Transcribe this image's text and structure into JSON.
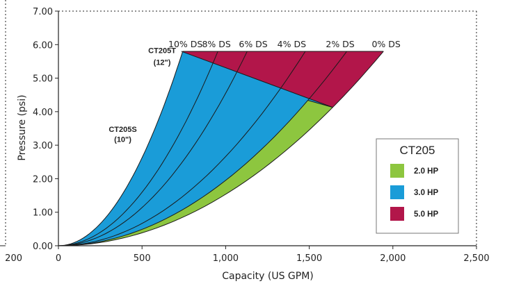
{
  "chart_data": {
    "type": "area",
    "xlabel": "Capacity (US GPM)",
    "ylabel": "Pressure (psi)",
    "xlim": [
      0,
      2500
    ],
    "ylim": [
      0,
      7
    ],
    "x_ticks": [
      "0",
      "500",
      "1,000",
      "1,500",
      "2,000",
      "2,500"
    ],
    "y_ticks": [
      "0.00",
      "1.00",
      "2.00",
      "3.00",
      "4.00",
      "5.00",
      "6.00",
      "7.00"
    ],
    "left_clipped_tick": "200",
    "grid": false,
    "legend": {
      "position": "right",
      "title": "CT205",
      "items": [
        {
          "label": "2.0 HP",
          "color": "#8dc63f"
        },
        {
          "label": "3.0 HP",
          "color": "#1a9cd8"
        },
        {
          "label": "5.0 HP",
          "color": "#b2164a"
        }
      ]
    },
    "max_pressure": 5.8,
    "ds_curves": [
      {
        "label": "10% DS",
        "k": 10.5
      },
      {
        "label": "8% DS",
        "k": 6.38
      },
      {
        "label": "6% DS",
        "k": 4.55
      },
      {
        "label": "4% DS",
        "k": 2.66
      },
      {
        "label": "2% DS",
        "k": 1.95
      },
      {
        "label": "0% DS",
        "k": 1.535
      }
    ],
    "ds_label_x": [
      760,
      945,
      1165,
      1395,
      1685,
      1960
    ],
    "power_lines": [
      {
        "hp": "5.0 HP",
        "points": [
          [
            735,
            5.8
          ],
          [
            1480,
            5.8
          ]
        ]
      },
      {
        "hp": "3.0 HP",
        "points": [
          [
            735,
            5.8
          ],
          [
            1640,
            4.15
          ]
        ]
      },
      {
        "hp": "2.0 HP",
        "points": [
          [
            1630,
            4.15
          ],
          [
            1700,
            4.0
          ]
        ]
      }
    ],
    "regions": {
      "hp5": {
        "color": "#b2164a"
      },
      "hp3": {
        "color": "#1a9cd8"
      },
      "hp2": {
        "color": "#8dc63f"
      }
    },
    "annotations": [
      {
        "text": "CT205T",
        "x": 620,
        "y": 5.75
      },
      {
        "text": "(12\")",
        "x": 620,
        "y": 5.4
      },
      {
        "text": "CT205S",
        "x": 385,
        "y": 3.4
      },
      {
        "text": "(10\")",
        "x": 385,
        "y": 3.1
      }
    ]
  }
}
